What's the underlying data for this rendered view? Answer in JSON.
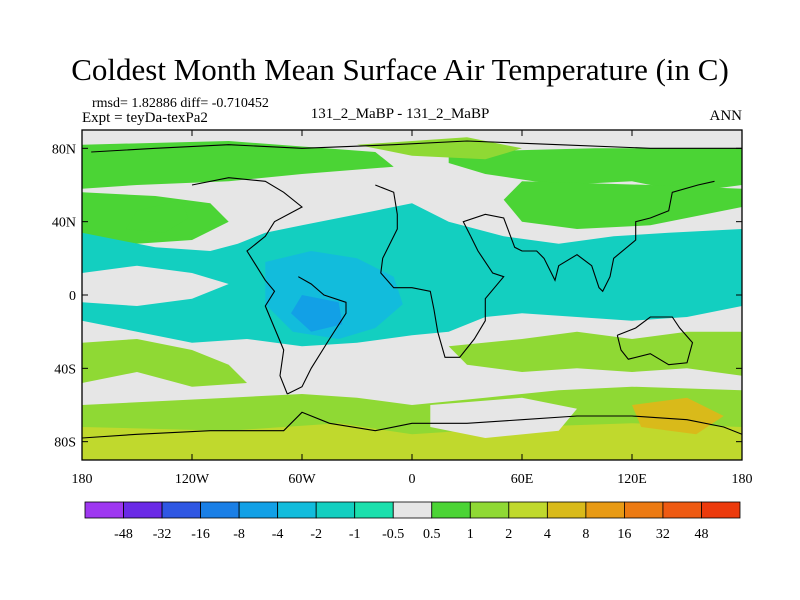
{
  "header": {
    "title": "Coldest Month Mean Surface Air Temperature (in C)",
    "stats": "rmsd= 1.82886  diff= -0.710452",
    "expt": "Expt = teyDa-texPa2",
    "center_label": "131_2_MaBP - 131_2_MaBP",
    "season": "ANN"
  },
  "chart_data": {
    "type": "heatmap",
    "xlim": [
      -180,
      180
    ],
    "ylim": [
      -90,
      90
    ],
    "x_ticks": [
      {
        "value": -180,
        "label": "180"
      },
      {
        "value": -120,
        "label": "120W"
      },
      {
        "value": -60,
        "label": "60W"
      },
      {
        "value": 0,
        "label": "0"
      },
      {
        "value": 60,
        "label": "60E"
      },
      {
        "value": 120,
        "label": "120E"
      },
      {
        "value": 180,
        "label": "180"
      }
    ],
    "y_ticks": [
      {
        "value": 80,
        "label": "80N"
      },
      {
        "value": 40,
        "label": "40N"
      },
      {
        "value": 0,
        "label": "0"
      },
      {
        "value": -40,
        "label": "40S"
      },
      {
        "value": -80,
        "label": "80S"
      }
    ],
    "colorbar": {
      "labels": [
        "-48",
        "-32",
        "-16",
        "-8",
        "-4",
        "-2",
        "-1",
        "-0.5",
        "0.5",
        "1",
        "2",
        "4",
        "8",
        "16",
        "32",
        "48"
      ],
      "colors": [
        "#9e37f0",
        "#6a2ae6",
        "#2f57e3",
        "#1a7fe6",
        "#12a0e6",
        "#12bcdc",
        "#13cfc0",
        "#1be0ad",
        "#e6e6e6",
        "#4bd435",
        "#8fd934",
        "#c0d92d",
        "#d9ba1a",
        "#e89a14",
        "#ec7a12",
        "#ee5a12",
        "#ec3a0c"
      ]
    },
    "regions": [
      {
        "label": "",
        "bin": 8,
        "pts": [
          [
            -180,
            90
          ],
          [
            180,
            90
          ],
          [
            180,
            -90
          ],
          [
            -180,
            -90
          ]
        ]
      },
      {
        "label": "",
        "bin": 9,
        "pts": [
          [
            -180,
            82
          ],
          [
            -100,
            84
          ],
          [
            -20,
            78
          ],
          [
            -10,
            70
          ],
          [
            -60,
            66
          ],
          [
            -100,
            62
          ],
          [
            -150,
            60
          ],
          [
            -180,
            58
          ]
        ]
      },
      {
        "label": "",
        "bin": 9,
        "pts": [
          [
            -180,
            56
          ],
          [
            -140,
            54
          ],
          [
            -110,
            50
          ],
          [
            -100,
            40
          ],
          [
            -120,
            30
          ],
          [
            -150,
            28
          ],
          [
            -180,
            32
          ]
        ]
      },
      {
        "label": "",
        "bin": 9,
        "pts": [
          [
            -150,
            46
          ],
          [
            -126,
            52
          ],
          [
            -122,
            42
          ],
          [
            -135,
            34
          ],
          [
            -156,
            36
          ]
        ]
      },
      {
        "label": "",
        "bin": 9,
        "pts": [
          [
            20,
            78
          ],
          [
            100,
            80
          ],
          [
            180,
            80
          ],
          [
            180,
            60
          ],
          [
            150,
            56
          ],
          [
            120,
            62
          ],
          [
            80,
            60
          ],
          [
            40,
            66
          ],
          [
            20,
            72
          ]
        ]
      },
      {
        "label": "",
        "bin": 10,
        "pts": [
          [
            -30,
            82
          ],
          [
            30,
            86
          ],
          [
            60,
            80
          ],
          [
            40,
            74
          ],
          [
            0,
            76
          ]
        ]
      },
      {
        "label": "",
        "bin": 9,
        "pts": [
          [
            60,
            62
          ],
          [
            130,
            60
          ],
          [
            180,
            58
          ],
          [
            180,
            48
          ],
          [
            130,
            38
          ],
          [
            90,
            36
          ],
          [
            60,
            40
          ],
          [
            50,
            52
          ]
        ]
      },
      {
        "label": "",
        "bin": 6,
        "pts": [
          [
            -180,
            34
          ],
          [
            -140,
            26
          ],
          [
            -110,
            24
          ],
          [
            -95,
            28
          ],
          [
            -80,
            34
          ],
          [
            -60,
            38
          ],
          [
            -20,
            46
          ],
          [
            0,
            50
          ],
          [
            20,
            40
          ],
          [
            50,
            32
          ],
          [
            80,
            28
          ],
          [
            110,
            32
          ],
          [
            140,
            34
          ],
          [
            180,
            36
          ],
          [
            180,
            -6
          ],
          [
            150,
            -12
          ],
          [
            120,
            -14
          ],
          [
            90,
            -12
          ],
          [
            60,
            -10
          ],
          [
            40,
            -12
          ],
          [
            20,
            -20
          ],
          [
            0,
            -22
          ],
          [
            -30,
            -26
          ],
          [
            -60,
            -28
          ],
          [
            -90,
            -24
          ],
          [
            -120,
            -26
          ],
          [
            -150,
            -20
          ],
          [
            -180,
            -14
          ]
        ]
      },
      {
        "label": "",
        "bin": 8,
        "pts": [
          [
            -180,
            12
          ],
          [
            -150,
            16
          ],
          [
            -120,
            12
          ],
          [
            -100,
            6
          ],
          [
            -120,
            -2
          ],
          [
            -150,
            -6
          ],
          [
            -180,
            -4
          ]
        ]
      },
      {
        "label": "",
        "bin": 5,
        "pts": [
          [
            -80,
            18
          ],
          [
            -55,
            24
          ],
          [
            -30,
            20
          ],
          [
            -10,
            10
          ],
          [
            -5,
            -5
          ],
          [
            -20,
            -18
          ],
          [
            -40,
            -24
          ],
          [
            -65,
            -20
          ],
          [
            -80,
            -5
          ]
        ]
      },
      {
        "label": "",
        "bin": 4,
        "pts": [
          [
            -60,
            0
          ],
          [
            -40,
            -4
          ],
          [
            -38,
            -16
          ],
          [
            -55,
            -20
          ],
          [
            -66,
            -10
          ]
        ]
      },
      {
        "label": "",
        "bin": 10,
        "pts": [
          [
            -180,
            -26
          ],
          [
            -150,
            -24
          ],
          [
            -120,
            -30
          ],
          [
            -100,
            -38
          ],
          [
            -90,
            -48
          ],
          [
            -120,
            -50
          ],
          [
            -150,
            -42
          ],
          [
            -180,
            -48
          ]
        ]
      },
      {
        "label": "",
        "bin": 10,
        "pts": [
          [
            20,
            -28
          ],
          [
            60,
            -24
          ],
          [
            90,
            -20
          ],
          [
            120,
            -24
          ],
          [
            150,
            -20
          ],
          [
            180,
            -20
          ],
          [
            180,
            -44
          ],
          [
            150,
            -40
          ],
          [
            120,
            -42
          ],
          [
            90,
            -40
          ],
          [
            60,
            -42
          ],
          [
            30,
            -38
          ]
        ]
      },
      {
        "label": "",
        "bin": 10,
        "pts": [
          [
            -180,
            -60
          ],
          [
            -100,
            -56
          ],
          [
            -60,
            -54
          ],
          [
            -30,
            -56
          ],
          [
            0,
            -60
          ],
          [
            40,
            -56
          ],
          [
            80,
            -52
          ],
          [
            120,
            -50
          ],
          [
            180,
            -52
          ],
          [
            180,
            -90
          ],
          [
            -180,
            -90
          ]
        ]
      },
      {
        "label": "",
        "bin": 11,
        "pts": [
          [
            -180,
            -72
          ],
          [
            -100,
            -74
          ],
          [
            -40,
            -70
          ],
          [
            0,
            -76
          ],
          [
            60,
            -72
          ],
          [
            120,
            -70
          ],
          [
            180,
            -72
          ],
          [
            180,
            -90
          ],
          [
            -180,
            -90
          ]
        ]
      },
      {
        "label": "",
        "bin": 8,
        "pts": [
          [
            10,
            -60
          ],
          [
            60,
            -56
          ],
          [
            90,
            -62
          ],
          [
            80,
            -74
          ],
          [
            40,
            -78
          ],
          [
            10,
            -72
          ]
        ]
      },
      {
        "label": "",
        "bin": 12,
        "pts": [
          [
            120,
            -60
          ],
          [
            150,
            -56
          ],
          [
            170,
            -66
          ],
          [
            155,
            -76
          ],
          [
            125,
            -72
          ]
        ]
      }
    ],
    "coastlines": [
      [
        [
          -175,
          78
        ],
        [
          -140,
          80
        ],
        [
          -100,
          82
        ],
        [
          -60,
          80
        ],
        [
          -10,
          82
        ],
        [
          30,
          84
        ],
        [
          80,
          82
        ],
        [
          130,
          80
        ],
        [
          180,
          80
        ]
      ],
      [
        [
          -120,
          60
        ],
        [
          -100,
          64
        ],
        [
          -80,
          62
        ],
        [
          -70,
          56
        ],
        [
          -60,
          48
        ],
        [
          -75,
          40
        ],
        [
          -80,
          32
        ],
        [
          -90,
          24
        ],
        [
          -85,
          16
        ],
        [
          -80,
          8
        ],
        [
          -75,
          2
        ],
        [
          -80,
          -6
        ],
        [
          -75,
          -18
        ],
        [
          -70,
          -30
        ],
        [
          -72,
          -44
        ],
        [
          -68,
          -54
        ]
      ],
      [
        [
          -68,
          -54
        ],
        [
          -60,
          -50
        ],
        [
          -55,
          -40
        ],
        [
          -45,
          -24
        ],
        [
          -36,
          -10
        ],
        [
          -36,
          -4
        ],
        [
          -48,
          0
        ],
        [
          -55,
          6
        ],
        [
          -62,
          10
        ]
      ],
      [
        [
          -20,
          60
        ],
        [
          -10,
          56
        ],
        [
          -8,
          44
        ],
        [
          -8,
          36
        ],
        [
          -16,
          20
        ],
        [
          -17,
          12
        ],
        [
          -10,
          4
        ],
        [
          0,
          4
        ],
        [
          10,
          2
        ],
        [
          12,
          -8
        ],
        [
          14,
          -20
        ],
        [
          18,
          -34
        ],
        [
          26,
          -34
        ],
        [
          34,
          -24
        ],
        [
          40,
          -14
        ],
        [
          40,
          -2
        ],
        [
          50,
          10
        ],
        [
          44,
          12
        ],
        [
          36,
          24
        ],
        [
          32,
          32
        ]
      ],
      [
        [
          32,
          32
        ],
        [
          28,
          40
        ],
        [
          40,
          44
        ],
        [
          50,
          42
        ],
        [
          56,
          26
        ],
        [
          60,
          24
        ],
        [
          68,
          24
        ],
        [
          72,
          20
        ],
        [
          78,
          8
        ],
        [
          80,
          16
        ],
        [
          90,
          22
        ],
        [
          98,
          16
        ],
        [
          102,
          4
        ],
        [
          104,
          2
        ],
        [
          108,
          10
        ],
        [
          110,
          20
        ],
        [
          122,
          30
        ],
        [
          122,
          40
        ],
        [
          130,
          42
        ],
        [
          140,
          46
        ],
        [
          142,
          56
        ],
        [
          156,
          60
        ],
        [
          165,
          62
        ]
      ],
      [
        [
          112,
          -22
        ],
        [
          114,
          -30
        ],
        [
          118,
          -35
        ],
        [
          130,
          -32
        ],
        [
          140,
          -38
        ],
        [
          150,
          -37
        ],
        [
          153,
          -26
        ],
        [
          146,
          -18
        ],
        [
          142,
          -12
        ],
        [
          136,
          -12
        ],
        [
          130,
          -12
        ],
        [
          122,
          -18
        ],
        [
          112,
          -22
        ]
      ],
      [
        [
          -180,
          -78
        ],
        [
          -150,
          -76
        ],
        [
          -110,
          -74
        ],
        [
          -70,
          -74
        ],
        [
          -60,
          -64
        ],
        [
          -45,
          -70
        ],
        [
          -20,
          -74
        ],
        [
          0,
          -70
        ],
        [
          30,
          -70
        ],
        [
          60,
          -68
        ],
        [
          90,
          -66
        ],
        [
          120,
          -66
        ],
        [
          150,
          -68
        ],
        [
          170,
          -72
        ],
        [
          180,
          -76
        ]
      ]
    ]
  }
}
